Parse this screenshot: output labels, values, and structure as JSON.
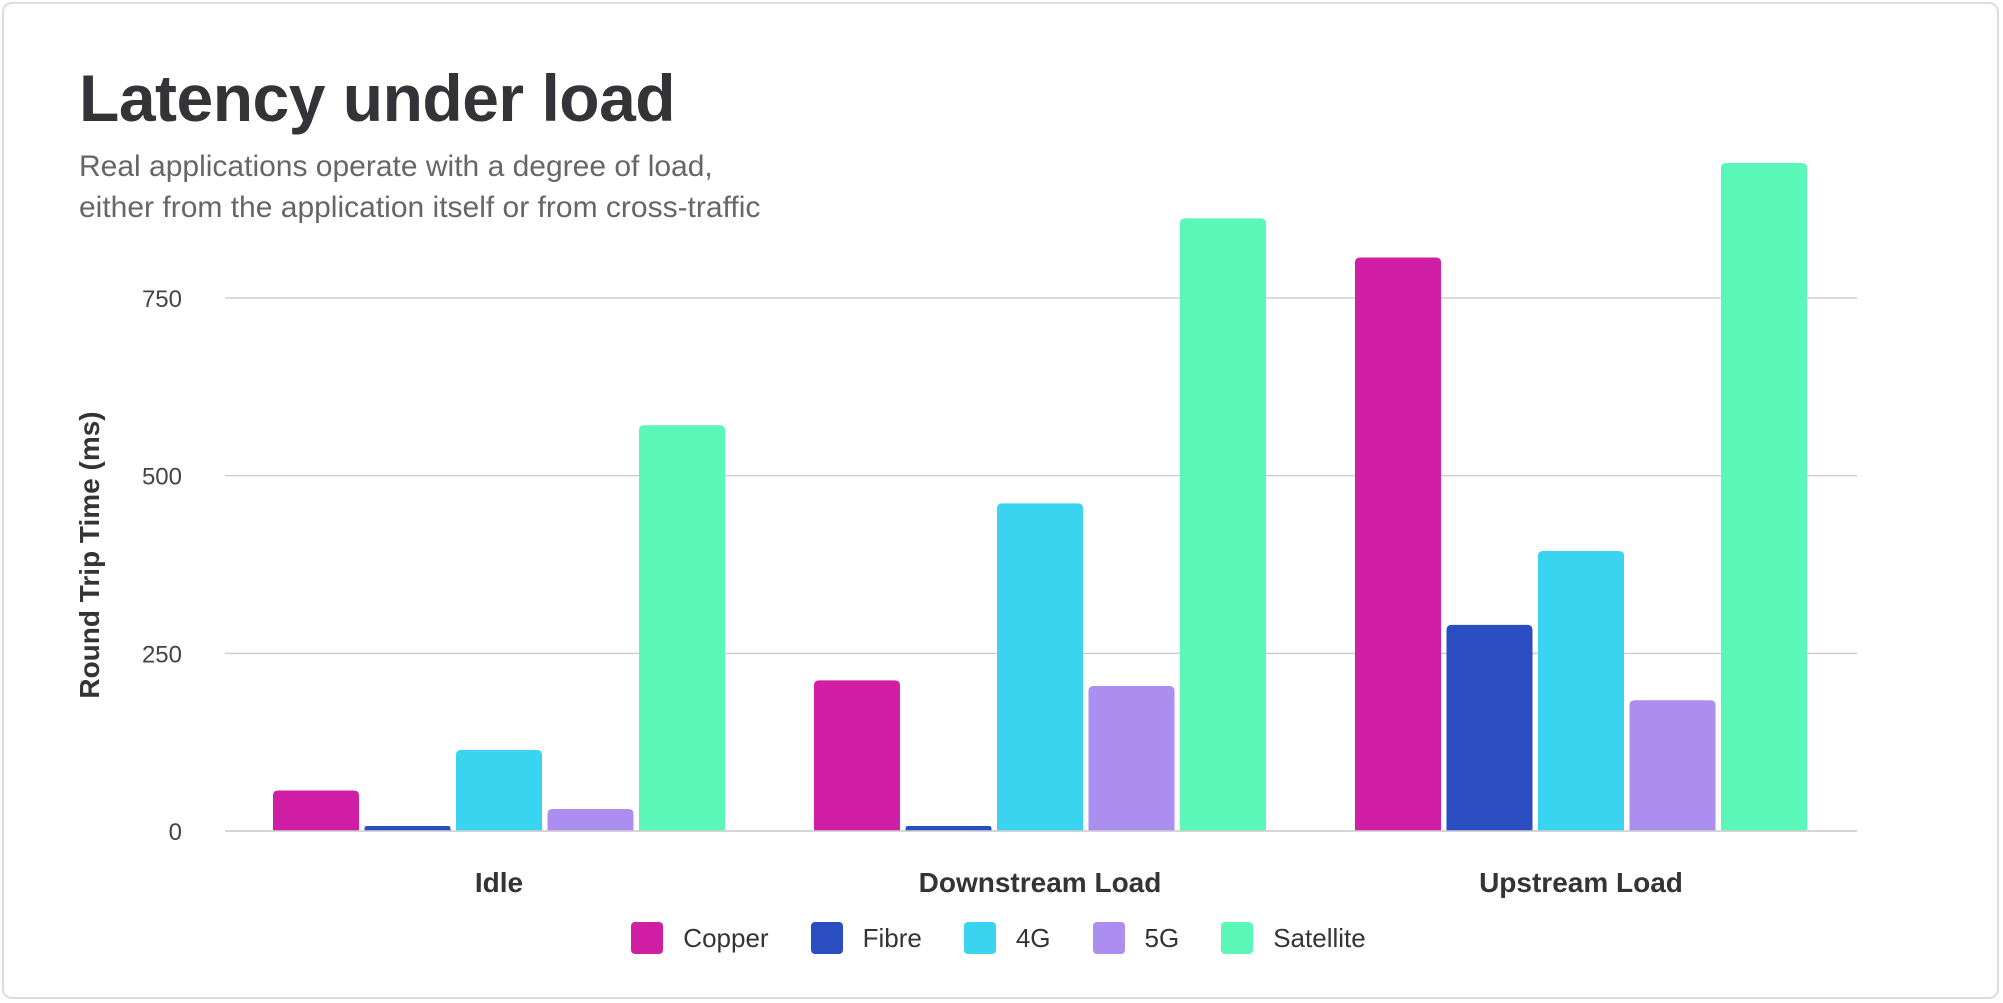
{
  "title": "Latency under load",
  "subtitle_lines": [
    "Real applications operate with a degree of load,",
    "either from the application itself or from cross-traffic"
  ],
  "chart_data": {
    "type": "bar",
    "categories": [
      "Idle",
      "Downstream Load",
      "Upstream Load"
    ],
    "series": [
      {
        "name": "Copper",
        "color": "#d01ea5",
        "values": [
          57,
          212,
          807
        ]
      },
      {
        "name": "Fibre",
        "color": "#2a4ec2",
        "values": [
          7,
          7,
          290
        ]
      },
      {
        "name": "4G",
        "color": "#3ad4f0",
        "values": [
          114,
          461,
          394
        ]
      },
      {
        "name": "5G",
        "color": "#ab8ef0",
        "values": [
          31,
          204,
          184
        ]
      },
      {
        "name": "Satellite",
        "color": "#5af7b8",
        "values": [
          571,
          862,
          940
        ]
      }
    ],
    "ylabel": "Round Trip Time (ms)",
    "xlabel": "",
    "yticks": [
      0,
      250,
      500,
      750
    ],
    "ylim": [
      0,
      940
    ],
    "grid": true,
    "legend_position": "bottom-center"
  }
}
